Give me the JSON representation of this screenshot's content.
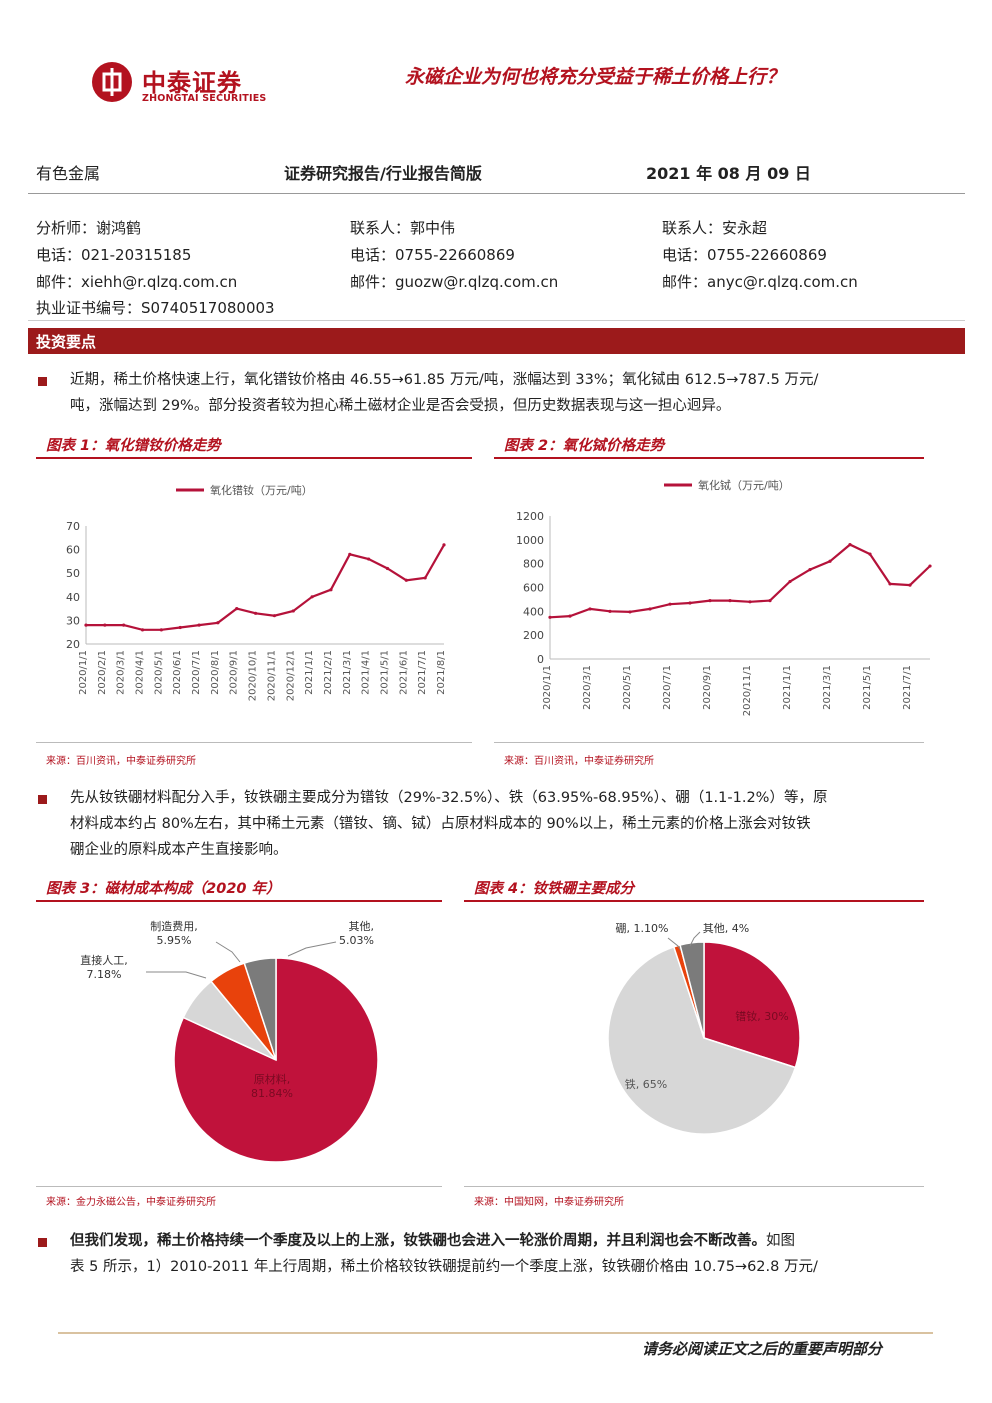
{
  "header": {
    "logo_name": "中泰证券",
    "logo_en": "ZHONGTAI SECURITIES",
    "doc_title": "永磁企业为何也将充分受益于稀土价格上行？",
    "industry": "有色金属",
    "report_type": "证券研究报告/行业报告简版",
    "date": "2021 年 08 月 09 日"
  },
  "contacts": [
    {
      "role": "分析师：谢鸿鹤",
      "phone": "电话：021-20315185",
      "email": "邮件：xiehh@r.qlzq.com.cn",
      "license": "执业证书编号：S0740517080003"
    },
    {
      "role": "联系人：郭中伟",
      "phone": "电话：0755-22660869",
      "email": "邮件：guozw@r.qlzq.com.cn"
    },
    {
      "role": "联系人：安永超",
      "phone": "电话：0755-22660869",
      "email": "邮件：anyc@r.qlzq.com.cn"
    }
  ],
  "section_title": "投资要点",
  "paragraphs": {
    "p1_line1": "近期，稀土价格快速上行，氧化镨钕价格由 46.55→61.85 万元/吨，涨幅达到 33%；氧化铽由 612.5→787.5 万元/",
    "p1_line2": "吨，涨幅达到 29%。部分投资者较为担心稀土磁材企业是否会受损，但历史数据表现与这一担心迥异。",
    "p2_line1": "先从钕铁硼材料配分入手，钕铁硼主要成分为镨钕（29%-32.5%）、铁（63.95%-68.95%）、硼（1.1-1.2%）等，原",
    "p2_line2": "材料成本约占 80%左右，其中稀土元素（镨钕、镝、铽）占原材料成本的 90%以上，稀土元素的价格上涨会对钕铁",
    "p2_line3": "硼企业的原料成本产生直接影响。",
    "p3_bold": "但我们发现，稀土价格持续一个季度及以上的上涨，钕铁硼也会进入一轮涨价周期，并且利润也会不断改善。",
    "p3_rest": "如图",
    "p3_line2": "表 5 所示，1）2010-2011 年上行周期，稀土价格较钕铁硼提前约一个季度上涨，钕铁硼价格由 10.75→62.8 万元/"
  },
  "figures": {
    "fig1": {
      "title": "图表 1：氧化镨钕价格走势",
      "source": "来源：百川资讯，中泰证券研究所"
    },
    "fig2": {
      "title": "图表 2：氧化铽价格走势",
      "source": "来源：百川资讯，中泰证券研究所"
    },
    "fig3": {
      "title": "图表 3：磁材成本构成（2020 年）",
      "source": "来源：金力永磁公告，中泰证券研究所"
    },
    "fig4": {
      "title": "图表 4：钕铁硼主要成分",
      "source": "来源：中国知网，中泰证券研究所"
    }
  },
  "chart_data": [
    {
      "type": "line",
      "series": [
        {
          "name": "氧化镨钕（万元/吨）",
          "color": "#b5123a",
          "x": [
            "2020/1/1",
            "2020/2/1",
            "2020/3/1",
            "2020/4/1",
            "2020/5/1",
            "2020/6/1",
            "2020/7/1",
            "2020/8/1",
            "2020/9/1",
            "2020/10/1",
            "2020/11/1",
            "2020/12/1",
            "2021/1/1",
            "2021/2/1",
            "2021/3/1",
            "2021/4/1",
            "2021/5/1",
            "2021/6/1",
            "2021/7/1",
            "2021/8/1"
          ],
          "values": [
            28,
            28,
            28,
            26,
            26,
            27,
            28,
            29,
            35,
            33,
            32,
            34,
            40,
            43,
            58,
            56,
            52,
            47,
            48,
            62
          ]
        }
      ],
      "y_ticks": [
        20,
        30,
        40,
        50,
        60,
        70
      ],
      "ylim": [
        20,
        70
      ],
      "grid": false,
      "legend": "top"
    },
    {
      "type": "line",
      "series": [
        {
          "name": "氧化铽（万元/吨）",
          "color": "#b5123a",
          "x": [
            "2020/1/1",
            "2020/2/1",
            "2020/3/1",
            "2020/4/1",
            "2020/5/1",
            "2020/6/1",
            "2020/7/1",
            "2020/8/1",
            "2020/9/1",
            "2020/10/1",
            "2020/11/1",
            "2020/12/1",
            "2021/1/1",
            "2021/2/1",
            "2021/3/1",
            "2021/4/1",
            "2021/5/1",
            "2021/6/1",
            "2021/7/1",
            "2021/8/1"
          ],
          "values": [
            350,
            360,
            420,
            400,
            395,
            420,
            460,
            470,
            490,
            490,
            480,
            490,
            650,
            750,
            820,
            960,
            880,
            630,
            620,
            780
          ]
        }
      ],
      "y_ticks": [
        0,
        200,
        400,
        600,
        800,
        1000,
        1200
      ],
      "ylim": [
        0,
        1200
      ],
      "grid": false,
      "legend": "top"
    },
    {
      "type": "pie",
      "labels": [
        "原材料",
        "直接人工",
        "制造费用",
        "其他"
      ],
      "values": [
        81.84,
        7.18,
        5.95,
        5.03
      ],
      "display": [
        "81.84%",
        "7.18%",
        "5.95%",
        "5.03%"
      ],
      "colors": [
        "#c0123b",
        "#d7d7d7",
        "#e8420c",
        "#7b7b7b"
      ]
    },
    {
      "type": "pie",
      "labels": [
        "镨钕",
        "铁",
        "硼",
        "其他"
      ],
      "values": [
        30,
        65,
        1.1,
        4
      ],
      "display": [
        "30%",
        "65%",
        "1.10%",
        "4%"
      ],
      "colors": [
        "#c0123b",
        "#d7d7d7",
        "#e8420c",
        "#7b7b7b"
      ]
    }
  ],
  "footer": {
    "disclaimer": "请务必阅读正文之后的重要声明部分"
  }
}
